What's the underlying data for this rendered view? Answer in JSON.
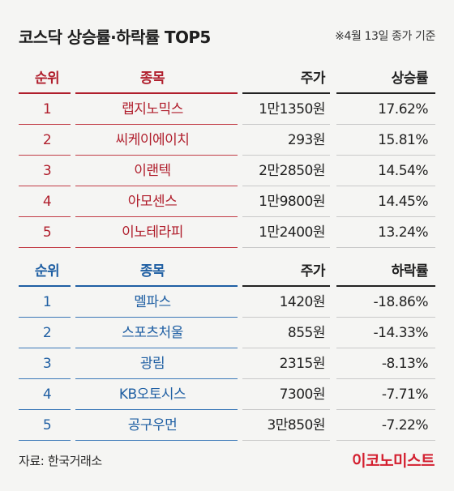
{
  "header": {
    "title": "코스닥 상승률·하락률 TOP5",
    "basis": "※4월 13일 종가 기준"
  },
  "rise_table": {
    "columns": [
      "순위",
      "종목",
      "주가",
      "상승률"
    ],
    "rows": [
      {
        "rank": "1",
        "name": "랩지노믹스",
        "price": "1만1350원",
        "rate": "17.62%"
      },
      {
        "rank": "2",
        "name": "씨케이에이치",
        "price": "293원",
        "rate": "15.81%"
      },
      {
        "rank": "3",
        "name": "이랜텍",
        "price": "2만2850원",
        "rate": "14.54%"
      },
      {
        "rank": "4",
        "name": "아모센스",
        "price": "1만9800원",
        "rate": "14.45%"
      },
      {
        "rank": "5",
        "name": "이노테라피",
        "price": "1만2400원",
        "rate": "13.24%"
      }
    ]
  },
  "fall_table": {
    "columns": [
      "순위",
      "종목",
      "주가",
      "하락률"
    ],
    "rows": [
      {
        "rank": "1",
        "name": "멜파스",
        "price": "1420원",
        "rate": "-18.86%"
      },
      {
        "rank": "2",
        "name": "스포츠처울",
        "price": "855원",
        "rate": "-14.33%"
      },
      {
        "rank": "3",
        "name": "광림",
        "price": "2315원",
        "rate": "-8.13%"
      },
      {
        "rank": "4",
        "name": "KB오토시스",
        "price": "7300원",
        "rate": "-7.71%"
      },
      {
        "rank": "5",
        "name": "공구우먼",
        "price": "3만850원",
        "rate": "-7.22%"
      }
    ]
  },
  "footer": {
    "source": "자료: 한국거래소",
    "brand": "이코노미스트"
  },
  "colors": {
    "background": "#f5f5f3",
    "rise_accent": "#b01e2c",
    "fall_accent": "#1f5fa3",
    "brand": "#d31f2f"
  }
}
